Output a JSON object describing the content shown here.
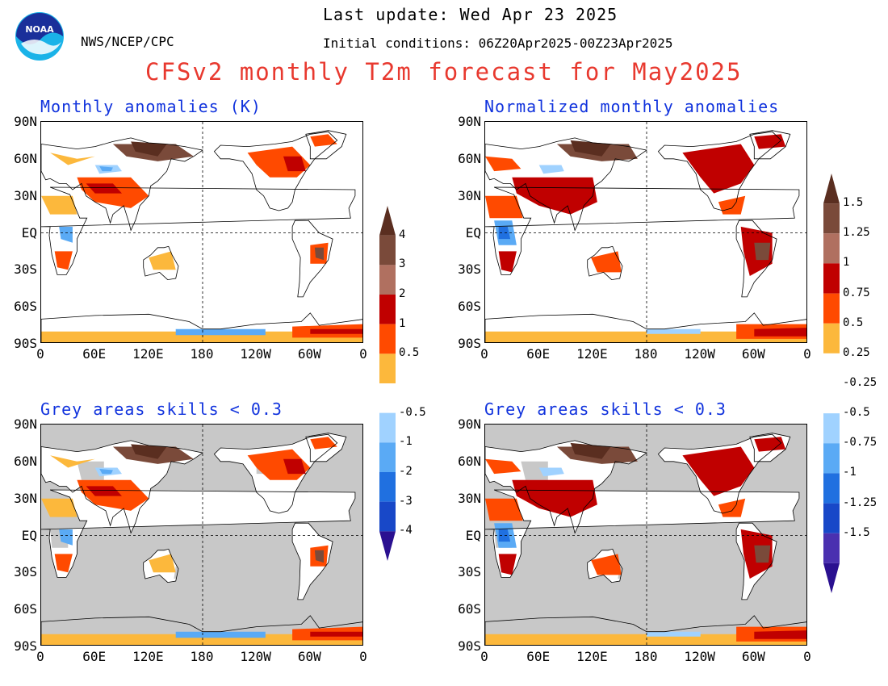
{
  "header": {
    "last_update": "Last update: Wed Apr 23 2025",
    "initial_conditions": "Initial conditions: 06Z20Apr2025-00Z23Apr2025",
    "org": "NWS/NCEP/CPC",
    "title": "CFSv2 monthly T2m forecast for May2025",
    "logo_text": "NOAA"
  },
  "panels": {
    "top_left": "Monthly anomalies (K)",
    "top_right": "Normalized monthly anomalies",
    "bottom_left": "Grey areas skills < 0.3",
    "bottom_right": "Grey areas skills < 0.3"
  },
  "axes": {
    "lat_labels": [
      "90N",
      "60N",
      "30N",
      "EQ",
      "30S",
      "60S",
      "90S"
    ],
    "lon_labels": [
      "0",
      "60E",
      "120E",
      "180",
      "120W",
      "60W",
      "0"
    ]
  },
  "colorbar_left": {
    "labels": [
      "4",
      "3",
      "2",
      "1",
      "0.5",
      "-0.5",
      "-1",
      "-2",
      "-3",
      "-4"
    ]
  },
  "colorbar_right": {
    "labels": [
      "1.5",
      "1.25",
      "1",
      "0.75",
      "0.5",
      "0.25",
      "-0.25",
      "-0.5",
      "-0.75",
      "-1",
      "-1.25",
      "-1.5"
    ]
  },
  "colors": {
    "warm": [
      "#fcb83c",
      "#ff4a00",
      "#c00000",
      "#b07060",
      "#7a4a3a",
      "#5a2e20"
    ],
    "cool": [
      "#a0d2ff",
      "#5aaaf5",
      "#2070e0",
      "#1848c8",
      "#4a30b0",
      "#2a1090"
    ],
    "grey_mask": "#c8c8c8",
    "title_red": "#e8392f",
    "label_blue": "#1133dd"
  }
}
